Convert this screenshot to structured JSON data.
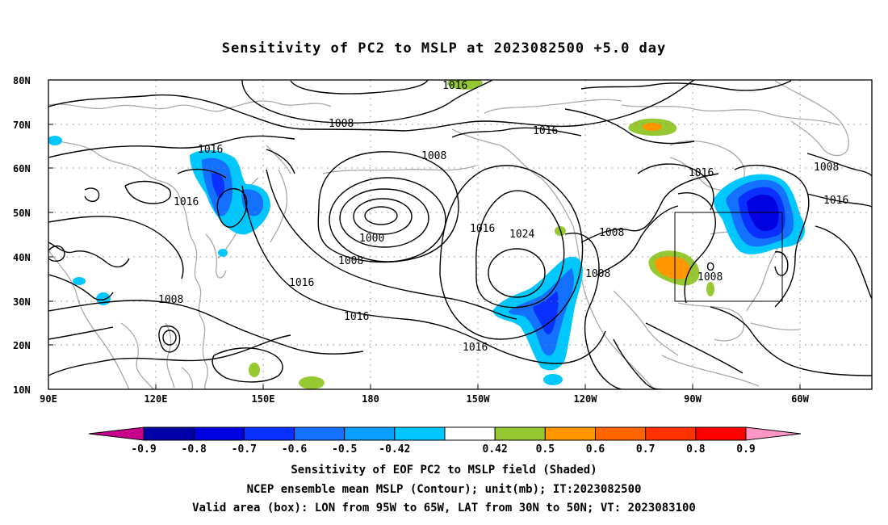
{
  "title": "Sensitivity of PC2 to MSLP at 2023082500 +5.0 day",
  "map": {
    "lat_range": [
      10,
      80
    ],
    "lon_range_east": [
      90,
      320
    ],
    "lat_ticks": [
      "80N",
      "70N",
      "60N",
      "50N",
      "40N",
      "30N",
      "20N",
      "10N"
    ],
    "lon_ticks": [
      "90E",
      "120E",
      "150E",
      "180",
      "150W",
      "120W",
      "90W",
      "60W"
    ],
    "grid": "dotted every 10 degrees",
    "valid_box": {
      "lon_west": 95,
      "lon_east": 65,
      "lat_south": 30,
      "lat_north": 50
    },
    "contour_labels": [
      "1008",
      "1016",
      "1008",
      "1016",
      "1016",
      "1016",
      "1000",
      "1008",
      "1016",
      "1016",
      "1024",
      "1008",
      "1008",
      "1008",
      "1016",
      "1016",
      "1008",
      "1016",
      "1016",
      "1008"
    ]
  },
  "colorbar": {
    "labels": [
      "-0.9",
      "-0.8",
      "-0.7",
      "-0.6",
      "-0.5",
      "-0.42",
      "0.42",
      "0.5",
      "0.6",
      "0.7",
      "0.8",
      "0.9"
    ],
    "colors": [
      "#c8008c",
      "#0000a8",
      "#0000e0",
      "#0a30ff",
      "#1470ff",
      "#0aa0ff",
      "#00c8ff",
      "#ffffff",
      "#96c832",
      "#ff9600",
      "#ff6400",
      "#ff3200",
      "#ff0000",
      "#ff96c8"
    ]
  },
  "footer": {
    "line1": "Sensitivity of EOF PC2 to MSLP field (Shaded)",
    "line2": "NCEP ensemble mean MSLP (Contour); unit(mb); IT:2023082500",
    "line3": "Valid area (box): LON from 95W to 65W, LAT from 30N to 50N; VT: 2023083100"
  }
}
